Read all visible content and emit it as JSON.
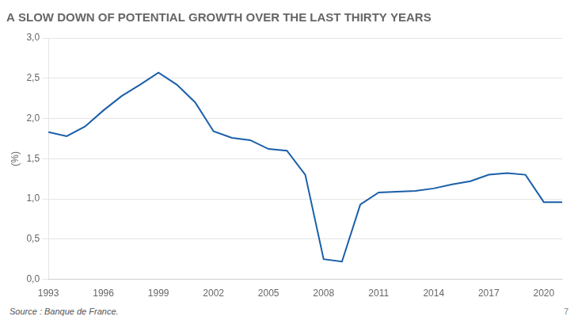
{
  "chart_data": {
    "type": "line",
    "title": "A SLOW DOWN OF POTENTIAL GROWTH OVER THE LAST THIRTY YEARS",
    "ylabel": "(%)",
    "annotations": [
      "Source : Banque de France.",
      "7"
    ],
    "x": [
      1993,
      1994,
      1995,
      1996,
      1997,
      1998,
      1999,
      2000,
      2001,
      2002,
      2003,
      2004,
      2005,
      2006,
      2007,
      2008,
      2009,
      2010,
      2011,
      2012,
      2013,
      2014,
      2015,
      2016,
      2017,
      2018,
      2019,
      2020,
      2021
    ],
    "values": [
      1.83,
      1.78,
      1.9,
      2.1,
      2.28,
      2.42,
      2.57,
      2.42,
      2.2,
      1.84,
      1.76,
      1.73,
      1.62,
      1.6,
      1.3,
      0.25,
      0.22,
      0.93,
      1.08,
      1.09,
      1.1,
      1.13,
      1.18,
      1.22,
      1.3,
      1.32,
      1.3,
      0.96,
      0.96
    ],
    "color": "#1a5fa8",
    "xlim": [
      1993,
      2021
    ],
    "xticks": [
      1993,
      1996,
      1999,
      2002,
      2005,
      2008,
      2011,
      2014,
      2017,
      2020
    ],
    "ylim": [
      0.0,
      3.0
    ],
    "yticks": [
      {
        "value": 0.0,
        "label": "0,0"
      },
      {
        "value": 0.5,
        "label": "0,5"
      },
      {
        "value": 1.0,
        "label": "1,0"
      },
      {
        "value": 1.5,
        "label": "1,5"
      },
      {
        "value": 2.0,
        "label": "2,0"
      },
      {
        "value": 2.5,
        "label": "2,5"
      },
      {
        "value": 3.0,
        "label": "3,0"
      }
    ],
    "grid": true
  }
}
